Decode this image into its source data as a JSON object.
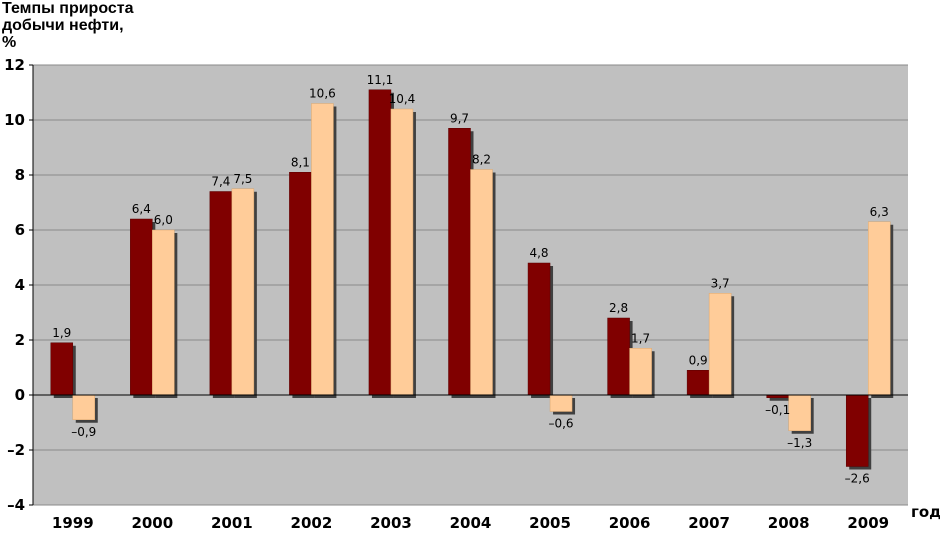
{
  "chart_data": {
    "type": "bar",
    "title_lines": [
      "Темпы прироста",
      "добычи нефти,",
      "%"
    ],
    "xlabel": "год",
    "ylabel": "",
    "ylim": [
      -4,
      12
    ],
    "yticks": [
      12,
      10,
      8,
      6,
      4,
      2,
      0,
      -2,
      -4
    ],
    "ytick_labels": [
      "12",
      "10",
      "8",
      "6",
      "4",
      "2",
      "0",
      "–2",
      "–4"
    ],
    "grid": true,
    "legend": "none",
    "categories": [
      "1999",
      "2000",
      "2001",
      "2002",
      "2003",
      "2004",
      "2005",
      "2006",
      "2007",
      "2008",
      "2009"
    ],
    "series": [
      {
        "color": "#800000",
        "values": [
          1.9,
          6.4,
          7.4,
          8.1,
          11.1,
          9.7,
          4.8,
          2.8,
          0.9,
          -0.1,
          -2.6
        ],
        "labels": [
          "1,9",
          "6,4",
          "7,4",
          "8,1",
          "11,1",
          "9,7",
          "4,8",
          "2,8",
          "0,9",
          "–0,1",
          "–2,6"
        ]
      },
      {
        "color": "#FFCC99",
        "values": [
          -0.9,
          6.0,
          7.5,
          10.6,
          10.4,
          8.2,
          -0.6,
          1.7,
          3.7,
          -1.3,
          6.3
        ],
        "labels": [
          "–0,9",
          "6,0",
          "7,5",
          "10,6",
          "10,4",
          "8,2",
          "–0,6",
          "1,7",
          "3,7",
          "–1,3",
          "6,3"
        ]
      }
    ],
    "plot_background": "#C0C0C0"
  }
}
